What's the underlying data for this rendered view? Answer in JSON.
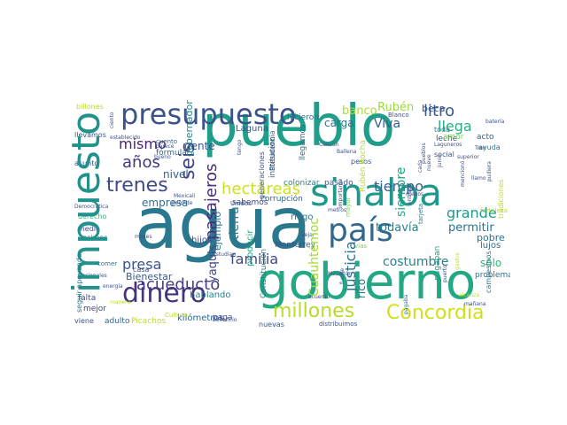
{
  "words": [
    {
      "t": "agua",
      "c": "#2a788e"
    },
    {
      "t": "pueblo",
      "c": "#1f9e89"
    },
    {
      "t": "gobierno",
      "c": "#22a884"
    },
    {
      "t": "impuesto",
      "c": "#21918c"
    },
    {
      "t": "país",
      "c": "#31688e"
    },
    {
      "t": "sinaloa",
      "c": "#1f988b"
    },
    {
      "t": "presupuesto",
      "c": "#3b528b"
    },
    {
      "t": "dinero",
      "c": "#46327e"
    },
    {
      "t": "millones",
      "c": "#b5de2b"
    },
    {
      "t": "Concordia",
      "c": "#d0e11c"
    },
    {
      "t": "trenes",
      "c": "#3e4a89"
    },
    {
      "t": "hectáreas",
      "c": "#cde11d"
    },
    {
      "t": "acueducto",
      "c": "#433e85"
    },
    {
      "t": "años",
      "c": "#453781"
    },
    {
      "t": "seis",
      "c": "#414487"
    },
    {
      "t": "mismo",
      "c": "#482475"
    },
    {
      "t": "pasajeros",
      "c": "#472d7b"
    },
    {
      "t": "familia",
      "c": "#3f4889"
    },
    {
      "t": "justicia",
      "c": "#2d708e"
    },
    {
      "t": "costumbre",
      "c": "#26828e"
    },
    {
      "t": "litro",
      "c": "#365c8d"
    },
    {
      "t": "tiempo",
      "c": "#355f8d"
    },
    {
      "t": "grande",
      "c": "#1f9a8a"
    },
    {
      "t": "llega",
      "c": "#29af7f"
    },
    {
      "t": "Viva",
      "c": "#355e8d"
    },
    {
      "t": "permitir",
      "c": "#2c738e"
    },
    {
      "t": "todavía",
      "c": "#25838e"
    },
    {
      "t": "siempre",
      "c": "#22a785"
    },
    {
      "t": "presa",
      "c": "#3a548c"
    },
    {
      "t": "banco",
      "c": "#a8db34"
    },
    {
      "t": "Rubén",
      "c": "#9dd93b"
    },
    {
      "t": "carga",
      "c": "#2c738e"
    },
    {
      "t": "beca",
      "c": "#3b528b"
    },
    {
      "t": "tierra",
      "c": "#2a778e"
    },
    {
      "t": "gente",
      "c": "#3b528b"
    },
    {
      "t": "nivel",
      "c": "#33638d"
    },
    {
      "t": "empresa",
      "c": "#2e6e8e"
    },
    {
      "t": "yaquis",
      "c": "#3f4788"
    },
    {
      "t": "Cuauhtémoc",
      "c": "#a5db36"
    },
    {
      "t": "sólo",
      "c": "#35b779"
    },
    {
      "t": "pobre",
      "c": "#2d718e"
    },
    {
      "t": "rico",
      "c": "#2a778e"
    },
    {
      "t": "Bienestar",
      "c": "#38598c"
    },
    {
      "t": "ejemplo",
      "c": "#2e6e8e"
    },
    {
      "t": "gobernador",
      "c": "#24868e"
    },
    {
      "t": "fórmula",
      "c": "#30698e"
    },
    {
      "t": "Laguna",
      "c": "#3b528b"
    },
    {
      "t": "hicieron",
      "c": "#2d708e"
    },
    {
      "t": "pagaban",
      "c": "#1fa088"
    },
    {
      "t": "hablando",
      "c": "#26828e"
    },
    {
      "t": "kilómetros",
      "c": "#31688e"
    },
    {
      "t": "colonizar",
      "c": "#27808e"
    },
    {
      "t": "pasado",
      "c": "#3a548c"
    },
    {
      "t": "corrupción",
      "c": "#33638d"
    },
    {
      "t": "sabemos",
      "c": "#3f4889"
    },
    {
      "t": "Monterrey",
      "c": "#3b528b"
    },
    {
      "t": "producir",
      "c": "#22a884"
    },
    {
      "t": "hijos",
      "c": "#3e4c8a"
    },
    {
      "t": "riego",
      "c": "#2a768e"
    },
    {
      "t": "leche",
      "c": "#3b528b"
    },
    {
      "t": "amor",
      "c": "#7ad151"
    },
    {
      "t": "acto",
      "c": "#38598c"
    },
    {
      "t": "lujos",
      "c": "#306a8e"
    },
    {
      "t": "problema",
      "c": "#2c728e"
    },
    {
      "t": "Picachos",
      "c": "#b8de29"
    },
    {
      "t": "paga",
      "c": "#3e4a89"
    },
    {
      "t": "adulto",
      "c": "#31688e"
    },
    {
      "t": "falta",
      "c": "#3d4e8a"
    },
    {
      "t": "mejor",
      "c": "#3e4a89"
    },
    {
      "t": "viene",
      "c": "#3b528b"
    },
    {
      "t": "billones",
      "c": "#b5de2b"
    },
    {
      "t": "llevamos",
      "c": "#3b528b"
    },
    {
      "t": "asunto",
      "c": "#3e4a89"
    },
    {
      "t": "seguir apoyando",
      "c": "#2a788e"
    },
    {
      "t": "medio",
      "c": "#3e4a89"
    },
    {
      "t": "decimos",
      "c": "#31688e"
    },
    {
      "t": "derecho",
      "c": "#35b779"
    },
    {
      "t": "Nacionales",
      "c": "#3b528b"
    },
    {
      "t": "comer",
      "c": "#2a768e"
    },
    {
      "t": "casa",
      "c": "#3b528b"
    },
    {
      "t": "cuento",
      "c": "#31688e"
    },
    {
      "t": "pesos",
      "c": "#3b528b"
    },
    {
      "t": "social",
      "c": "#3b528b"
    },
    {
      "t": "ayuda",
      "c": "#2c738e"
    },
    {
      "t": "toda",
      "c": "#2a768e"
    },
    {
      "t": "institución",
      "c": "#3b528b"
    },
    {
      "t": "generaciones",
      "c": "#3b528b"
    },
    {
      "t": "Presidencia",
      "c": "#30698e"
    },
    {
      "t": "llegamos",
      "c": "#2e6e8e"
    },
    {
      "t": "distribuimos",
      "c": "#3b528b"
    },
    {
      "t": "nuevas",
      "c": "#3b528b"
    },
    {
      "t": "Unidos",
      "c": "#3b528b"
    },
    {
      "t": "Constitución",
      "c": "#2a768e"
    },
    {
      "t": "dejar",
      "c": "#3b528b"
    },
    {
      "t": "tradiciones",
      "c": "#b5de2b"
    },
    {
      "t": "campesinos",
      "c": "#2a768e"
    },
    {
      "t": "alcanza",
      "c": "#b5de2b"
    },
    {
      "t": "mañana",
      "c": "#3b528b"
    },
    {
      "t": "Blanco",
      "c": "#3b528b"
    },
    {
      "t": "fortaleza",
      "c": "#b5de2b"
    },
    {
      "t": "superior",
      "c": "#3b528b"
    },
    {
      "t": "Rubén Rocha",
      "c": "#b5de2b"
    },
    {
      "t": "tarjeta",
      "c": "#2a768e"
    },
    {
      "t": "estudian",
      "c": "#3b528b"
    },
    {
      "t": "Cultura",
      "c": "#b5de2b"
    },
    {
      "t": "Mazatlán",
      "c": "#3b528b"
    },
    {
      "t": "metros",
      "c": "#3b528b"
    },
    {
      "t": "meses",
      "c": "#3b528b"
    },
    {
      "t": "energía",
      "c": "#3b528b"
    },
    {
      "t": "beneficio",
      "c": "#3b528b"
    },
    {
      "t": "menos",
      "c": "#3b528b"
    },
    {
      "t": "entrega",
      "c": "#3b528b"
    },
    {
      "t": "permite",
      "c": "#3b528b"
    },
    {
      "t": "establecido",
      "c": "#3b528b"
    },
    {
      "t": "parece",
      "c": "#3b528b"
    },
    {
      "t": "Cancún",
      "c": "#3b528b"
    },
    {
      "t": "acuerdo",
      "c": "#3b528b"
    },
    {
      "t": "vías",
      "c": "#7ad151"
    },
    {
      "t": "pagaba",
      "c": "#2a768e"
    },
    {
      "t": "Democrática",
      "c": "#3b528b"
    },
    {
      "t": "Mexicali",
      "c": "#3b528b"
    },
    {
      "t": "puerto",
      "c": "#3b528b"
    },
    {
      "t": "gastos",
      "c": "#b5de2b"
    },
    {
      "t": "mayor",
      "c": "#7ad151"
    },
    {
      "t": "manera",
      "c": "#3b528b"
    },
    {
      "t": "Tren",
      "c": "#b5de2b"
    },
    {
      "t": "fuerte",
      "c": "#3b528b"
    },
    {
      "t": "batería",
      "c": "#3b528b"
    },
    {
      "t": "cada",
      "c": "#3b528b"
    },
    {
      "t": "Ballena",
      "c": "#3b528b"
    },
    {
      "t": "Laguneros",
      "c": "#3b528b"
    },
    {
      "t": "ciento",
      "c": "#3b528b"
    },
    {
      "t": "pudiera",
      "c": "#3b528b"
    },
    {
      "t": "nueve",
      "c": "#3b528b"
    },
    {
      "t": "importante",
      "c": "#3b528b"
    },
    {
      "t": "bueno",
      "c": "#3b528b"
    },
    {
      "t": "tengo",
      "c": "#3b528b"
    },
    {
      "t": "mencionó",
      "c": "#3b528b"
    },
    {
      "t": "pueblos",
      "c": "#3b528b"
    },
    {
      "t": "junio",
      "c": "#3b528b"
    },
    {
      "t": "llamo",
      "c": "#3b528b"
    },
    {
      "t": "aviones",
      "c": "#3b528b"
    }
  ]
}
